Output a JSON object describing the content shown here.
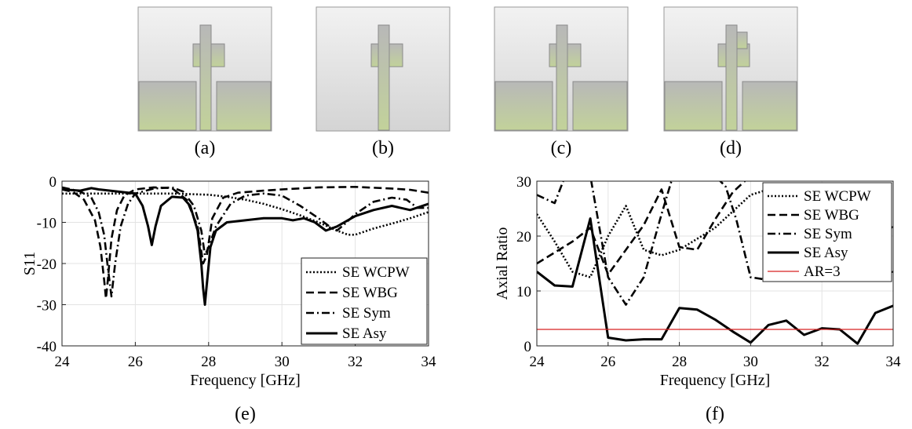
{
  "panels": [
    {
      "id": "a",
      "caption": "(a)",
      "ground_planes": true,
      "patch": "symmetric"
    },
    {
      "id": "b",
      "caption": "(b)",
      "ground_planes": false,
      "patch": "symmetric"
    },
    {
      "id": "c",
      "caption": "(c)",
      "ground_planes": true,
      "patch": "offset-right"
    },
    {
      "id": "d",
      "caption": "(d)",
      "ground_planes": true,
      "patch": "offset-right-high"
    }
  ],
  "colors": {
    "substrate_top": "#f2f2f2",
    "substrate_bottom": "#d4d4d4",
    "metal_top": "#b8b8b8",
    "metal_bottom": "#c2d29a",
    "threshold_line": "#d62020"
  },
  "chart_data": [
    {
      "caption": "(e)",
      "type": "line",
      "xlabel": "Frequency [GHz]",
      "ylabel": "S11",
      "xlim": [
        24,
        34
      ],
      "ylim": [
        -40,
        0
      ],
      "xticks": [
        24,
        26,
        28,
        30,
        32,
        34
      ],
      "yticks": [
        0,
        -10,
        -20,
        -30,
        -40
      ],
      "grid": true,
      "legend_position": "lower-right",
      "series": [
        {
          "name": "SE WCPW",
          "style": "dotted",
          "x": [
            24,
            25,
            26,
            27,
            28,
            28.5,
            29,
            29.5,
            30,
            30.5,
            31,
            31.5,
            31.8,
            32,
            32.5,
            33,
            33.5,
            34
          ],
          "y": [
            -3,
            -3,
            -3,
            -3,
            -3.3,
            -3.8,
            -4.5,
            -5.5,
            -6.8,
            -8.3,
            -10,
            -12,
            -13,
            -13,
            -11.5,
            -10.3,
            -9,
            -7.5
          ]
        },
        {
          "name": "SE WBG",
          "style": "dashed",
          "x": [
            24,
            24.3,
            24.6,
            24.9,
            25.05,
            25.15,
            25.2,
            25.25,
            25.35,
            25.5,
            25.7,
            26,
            26.5,
            27,
            27.4,
            27.7,
            27.85,
            27.95,
            28.1,
            28.4,
            28.8,
            29.5,
            30,
            31,
            32,
            33,
            33.5,
            34
          ],
          "y": [
            -2,
            -2.6,
            -4.5,
            -9.5,
            -16,
            -24,
            -28.5,
            -24,
            -14,
            -7,
            -3.5,
            -2,
            -1.5,
            -1.7,
            -4.5,
            -11,
            -20,
            -18,
            -9,
            -4,
            -2.8,
            -2.3,
            -2,
            -1.5,
            -1.4,
            -1.8,
            -2.1,
            -2.8
          ]
        },
        {
          "name": "SE Sym",
          "style": "dashdot",
          "x": [
            24,
            24.5,
            24.8,
            25,
            25.15,
            25.25,
            25.35,
            25.45,
            25.6,
            25.8,
            26,
            26.5,
            27,
            27.3,
            27.6,
            27.8,
            27.9,
            28,
            28.2,
            28.6,
            29,
            29.5,
            30,
            30.5,
            31,
            31.3,
            31.5,
            31.7,
            32,
            32.5,
            33,
            33.4,
            33.7,
            34
          ],
          "y": [
            -1.5,
            -2.5,
            -4,
            -7.5,
            -13,
            -21,
            -28,
            -20,
            -11,
            -5.5,
            -3,
            -1.8,
            -1.5,
            -2.5,
            -6,
            -12,
            -18,
            -16,
            -11,
            -5.5,
            -3.5,
            -3,
            -3.5,
            -6,
            -9,
            -11,
            -12,
            -10.5,
            -8,
            -5,
            -4,
            -4.5,
            -6.5,
            -6.5
          ]
        },
        {
          "name": "SE Asy",
          "style": "solid",
          "x": [
            24,
            24.5,
            24.8,
            25,
            25.5,
            26,
            26.2,
            26.35,
            26.45,
            26.55,
            26.7,
            27,
            27.3,
            27.5,
            27.7,
            27.8,
            27.85,
            27.9,
            27.95,
            28.05,
            28.2,
            28.5,
            29,
            29.5,
            30,
            30.3,
            30.6,
            30.9,
            31.2,
            31.5,
            31.7,
            32,
            32.5,
            33,
            33.5,
            34
          ],
          "y": [
            -2,
            -2.3,
            -1.7,
            -2,
            -2.5,
            -3,
            -6,
            -11,
            -15.5,
            -11,
            -6,
            -3.8,
            -4,
            -6,
            -12,
            -20,
            -26,
            -30,
            -25,
            -16,
            -12,
            -10,
            -9.5,
            -9,
            -9,
            -9.5,
            -9,
            -10,
            -12,
            -11,
            -10,
            -8.5,
            -7,
            -6,
            -7,
            -5.5
          ]
        }
      ]
    },
    {
      "caption": "(f)",
      "type": "line",
      "xlabel": "Frequency [GHz]",
      "ylabel": "Axial Ratio",
      "xlim": [
        24,
        34
      ],
      "ylim": [
        0,
        30
      ],
      "xticks": [
        24,
        26,
        28,
        30,
        32,
        34
      ],
      "yticks": [
        0,
        10,
        20,
        30
      ],
      "grid": true,
      "legend_position": "top-right",
      "series": [
        {
          "name": "SE WCPW",
          "style": "dotted",
          "x": [
            24,
            24.5,
            25,
            25.5,
            26,
            26.5,
            27,
            27.5,
            28,
            28.5,
            29,
            29.5,
            30,
            30.5,
            31,
            31.5,
            32,
            32.5,
            33,
            33.5,
            34
          ],
          "y": [
            24,
            19,
            13.5,
            12.5,
            20,
            25.5,
            17.5,
            16.5,
            17.5,
            19.5,
            21.5,
            24.5,
            27.5,
            28.5,
            28,
            27.5,
            27,
            26.5,
            24,
            23,
            21.5
          ]
        },
        {
          "name": "SE WBG",
          "style": "dashed",
          "x": [
            24,
            24.5,
            25,
            25.5,
            26,
            26.5,
            27,
            27.5,
            28,
            28.5,
            29,
            29.5,
            30,
            30.5,
            31,
            31.5,
            32,
            32.5,
            33,
            33.5,
            34
          ],
          "y": [
            15,
            17,
            19,
            21.5,
            13,
            17.5,
            22,
            28.5,
            18,
            17.5,
            23,
            28,
            31,
            31,
            31,
            31,
            31,
            31,
            31,
            31,
            31
          ]
        },
        {
          "name": "SE Sym",
          "style": "dashdot",
          "x": [
            24,
            24.5,
            24.8,
            25,
            25.5,
            26,
            26.5,
            27,
            27.5,
            27.8,
            28,
            28.5,
            29,
            29.3,
            29.6,
            30,
            30.5,
            31,
            31.5,
            32,
            32.5,
            33,
            33.5,
            34
          ],
          "y": [
            27.5,
            26,
            31,
            31,
            31,
            12.5,
            7.5,
            12.5,
            24,
            30.5,
            31,
            31,
            31,
            29,
            23,
            12.5,
            12,
            14,
            19,
            25,
            31,
            31,
            21.5,
            13
          ]
        },
        {
          "name": "SE Asy",
          "style": "solid",
          "x": [
            24,
            24.5,
            25,
            25.5,
            26,
            26.5,
            27,
            27.5,
            28,
            28.5,
            29,
            29.5,
            30,
            30.5,
            31,
            31.5,
            32,
            32.5,
            33,
            33.5,
            34
          ],
          "y": [
            13.5,
            11,
            10.8,
            23.2,
            1.5,
            1,
            1.2,
            1.2,
            6.9,
            6.6,
            4.8,
            2.6,
            0.6,
            3.8,
            4.6,
            2,
            3.2,
            3,
            0.4,
            6,
            7.3
          ]
        },
        {
          "name": "AR=3",
          "style": "thin-solid",
          "color": "#d62020",
          "x": [
            24,
            34
          ],
          "y": [
            3,
            3
          ]
        }
      ]
    }
  ]
}
